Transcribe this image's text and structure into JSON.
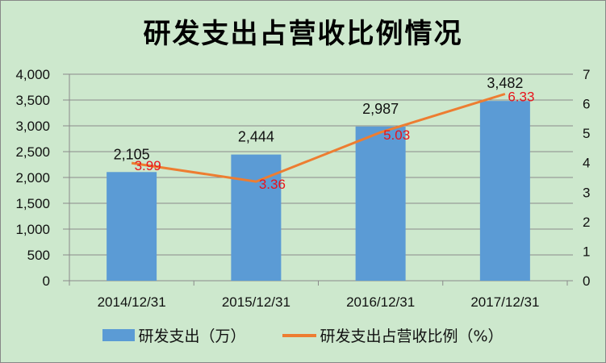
{
  "chart_data": {
    "type": "bar+line",
    "title": "研发支出占营收比例情况",
    "categories": [
      "2014/12/31",
      "2015/12/31",
      "2016/12/31",
      "2017/12/31"
    ],
    "series": [
      {
        "name": "研发支出（万）",
        "type": "bar",
        "axis": "left",
        "values": [
          2105,
          2444,
          2987,
          3482
        ],
        "labels": [
          "2,105",
          "2,444",
          "2,987",
          "3,482"
        ],
        "color": "#5b9bd5"
      },
      {
        "name": "研发支出占营收比例（%）",
        "type": "line",
        "axis": "right",
        "values": [
          3.99,
          3.36,
          5.03,
          6.33
        ],
        "labels": [
          "3.99",
          "3.36",
          "5.03",
          "6.33"
        ],
        "color": "#ed7d31",
        "label_color": "#e8141c"
      }
    ],
    "y_left": {
      "ylim": [
        0,
        4000
      ],
      "ticks": [
        0,
        500,
        1000,
        1500,
        2000,
        2500,
        3000,
        3500,
        4000
      ],
      "tick_labels": [
        "0",
        "500",
        "1,000",
        "1,500",
        "2,000",
        "2,500",
        "3,000",
        "3,500",
        "4,000"
      ]
    },
    "y_right": {
      "ylim": [
        0,
        7
      ],
      "ticks": [
        0,
        1,
        2,
        3,
        4,
        5,
        6,
        7
      ],
      "tick_labels": [
        "0",
        "1",
        "2",
        "3",
        "4",
        "5",
        "6",
        "7"
      ]
    },
    "grid": true,
    "legend": "bottom",
    "background": "#cde8cd"
  }
}
